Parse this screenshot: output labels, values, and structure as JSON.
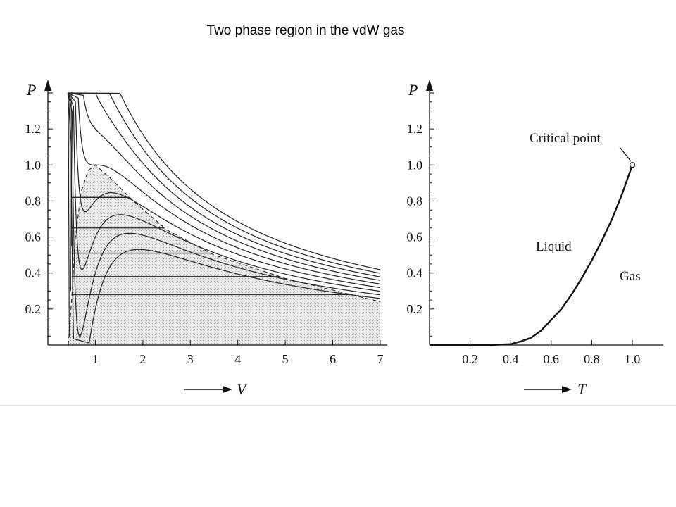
{
  "page": {
    "title": "Two phase region in the vdW gas"
  },
  "chart_data": [
    {
      "type": "line",
      "xlabel": "V",
      "ylabel": "P",
      "xlim": [
        0,
        7
      ],
      "ylim": [
        0,
        1.4
      ],
      "x_ticks": [
        1,
        2,
        3,
        4,
        5,
        6,
        7
      ],
      "y_ticks": [
        0.2,
        0.4,
        0.6,
        0.8,
        1.0,
        1.2
      ],
      "x_tick_labels": [
        "1",
        "2",
        "3",
        "4",
        "5",
        "6",
        "7"
      ],
      "y_tick_labels": [
        "0.2",
        "0.4",
        "0.6",
        "0.8",
        "1.0",
        "1.2"
      ],
      "series": [
        {
          "kind": "isotherm",
          "values_T": [
            1.2,
            1.15,
            1.1,
            1.05,
            1.0,
            0.95,
            0.9,
            0.85,
            0.8
          ]
        },
        {
          "kind": "coexistence-dome (dashed, shaded)",
          "points": [
            [
              0.43,
              0.0
            ],
            [
              0.5,
              0.25
            ],
            [
              0.58,
              0.6
            ],
            [
              0.7,
              0.85
            ],
            [
              0.85,
              0.97
            ],
            [
              1.0,
              1.0
            ],
            [
              1.3,
              0.93
            ],
            [
              1.8,
              0.8
            ],
            [
              2.5,
              0.64
            ],
            [
              3.5,
              0.5
            ],
            [
              5.0,
              0.37
            ],
            [
              7.0,
              0.24
            ]
          ]
        },
        {
          "kind": "tie-lines",
          "pressures": [
            0.82,
            0.65,
            0.51,
            0.38,
            0.28
          ]
        }
      ],
      "grid": false
    },
    {
      "type": "line",
      "xlabel": "T",
      "ylabel": "P",
      "xlim": [
        0,
        1.15
      ],
      "ylim": [
        0,
        1.4
      ],
      "x_ticks": [
        0.2,
        0.4,
        0.6,
        0.8,
        1.0
      ],
      "y_ticks": [
        0.2,
        0.4,
        0.6,
        0.8,
        1.0,
        1.2
      ],
      "x_tick_labels": [
        "0.2",
        "0.4",
        "0.6",
        "0.8",
        "1.0"
      ],
      "y_tick_labels": [
        "0.2",
        "0.4",
        "0.6",
        "0.8",
        "1.0",
        "1.2"
      ],
      "series": [
        {
          "kind": "vapor-pressure curve",
          "points": [
            [
              0.0,
              0.0
            ],
            [
              0.3,
              0.0
            ],
            [
              0.4,
              0.005
            ],
            [
              0.45,
              0.02
            ],
            [
              0.5,
              0.04
            ],
            [
              0.55,
              0.08
            ],
            [
              0.6,
              0.14
            ],
            [
              0.65,
              0.2
            ],
            [
              0.7,
              0.28
            ],
            [
              0.75,
              0.37
            ],
            [
              0.8,
              0.47
            ],
            [
              0.85,
              0.58
            ],
            [
              0.9,
              0.7
            ],
            [
              0.95,
              0.84
            ],
            [
              1.0,
              1.0
            ]
          ]
        }
      ],
      "annotations": [
        {
          "text": "Critical point",
          "x": 1.0,
          "y": 1.0
        },
        {
          "text": "Liquid"
        },
        {
          "text": "Gas"
        }
      ],
      "grid": false
    }
  ]
}
